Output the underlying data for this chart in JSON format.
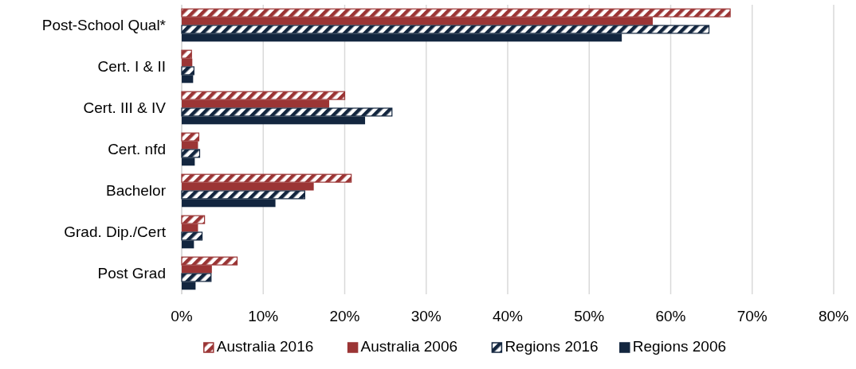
{
  "chart_data": {
    "type": "bar",
    "orientation": "horizontal",
    "categories": [
      "Post-School Qual*",
      "Cert. I & II",
      "Cert. III & IV",
      "Cert. nfd",
      "Bachelor",
      "Grad. Dip./Cert",
      "Post Grad"
    ],
    "series": [
      {
        "name": "Australia 2016",
        "color": "#9b3535",
        "values": [
          67.3,
          1.2,
          20.0,
          2.1,
          20.8,
          2.8,
          6.8
        ]
      },
      {
        "name": "Australia 2006",
        "color": "#9b3535",
        "values": [
          57.8,
          1.3,
          18.1,
          2.0,
          16.2,
          2.0,
          3.7
        ]
      },
      {
        "name": "Regions 2016",
        "color": "#13263f",
        "values": [
          64.7,
          1.5,
          25.8,
          2.2,
          15.1,
          2.5,
          3.6
        ]
      },
      {
        "name": "Regions 2006",
        "color": "#13263f",
        "values": [
          54.0,
          1.4,
          22.5,
          1.6,
          11.5,
          1.5,
          1.7
        ]
      }
    ],
    "xlim": [
      0,
      80
    ],
    "xticks": [
      {
        "value": 0,
        "label": "0%"
      },
      {
        "value": 10,
        "label": "10%"
      },
      {
        "value": 20,
        "label": "20%"
      },
      {
        "value": 30,
        "label": "30%"
      },
      {
        "value": 40,
        "label": "40%"
      },
      {
        "value": 50,
        "label": "50%"
      },
      {
        "value": 60,
        "label": "60%"
      },
      {
        "value": 70,
        "label": "70%"
      },
      {
        "value": 80,
        "label": "80%"
      }
    ],
    "grid": "x",
    "legend": "bottom"
  }
}
